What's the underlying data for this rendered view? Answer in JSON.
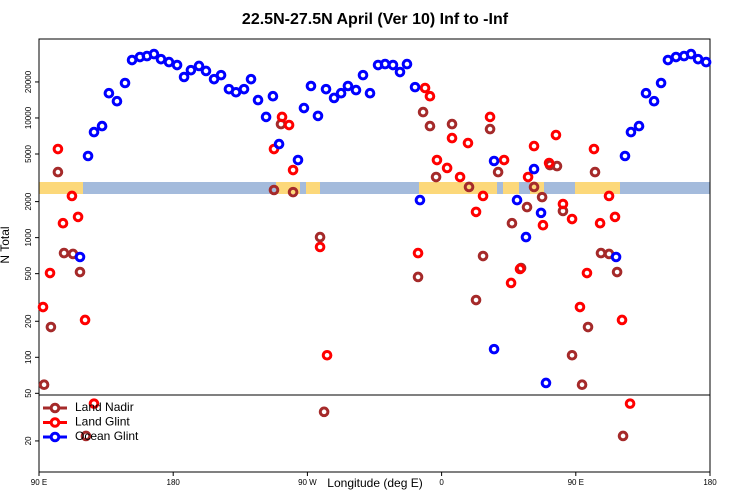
{
  "chart_data": {
    "type": "scatter",
    "title": "22.5N-27.5N April (Ver 10)   Inf to -Inf",
    "x_label": "Longitude (deg E)",
    "y_label": "N Total",
    "xlim": [
      90,
      540
    ],
    "xticks": [
      {
        "value": 90,
        "label": "90 E"
      },
      180,
      {
        "value": 270,
        "label": "90 W"
      },
      {
        "value": 360,
        "label": "0"
      },
      {
        "value": 450,
        "label": "90 E"
      },
      {
        "value": 540,
        "label": "180"
      }
    ],
    "ylim": [
      11,
      45700
    ],
    "log_y": true,
    "yticks": [
      20,
      50,
      100,
      200,
      500,
      1000,
      2000,
      5000,
      10000,
      20000
    ],
    "legend": "bottom-left",
    "series": [
      {
        "name": "Land Nadir",
        "color": "#a52a2a",
        "x": [
          93.4,
          98.0,
          102.7,
          106.8,
          112.8,
          117.5,
          121.5,
          247.6,
          252.3,
          260.4,
          278.5,
          281.2,
          344.2,
          347.6,
          352.2,
          356.3,
          367.0,
          378.4,
          383.1,
          387.8,
          392.5,
          397.9,
          407.2,
          413.3,
          417.3,
          422.0,
          427.4,
          432.7,
          437.4,
          441.4,
          447.5,
          454.2,
          458.2,
          462.9,
          466.9,
          472.3,
          477.7,
          481.7
        ],
        "values": [
          59,
          179,
          3530,
          743,
          730,
          516,
          22,
          2500,
          8890,
          2400,
          1010,
          35,
          469,
          11200,
          8550,
          3210,
          8890,
          2650,
          301,
          702,
          8070,
          3530,
          1320,
          557,
          1800,
          2650,
          2180,
          4040,
          3960,
          1670,
          104,
          59,
          179,
          3530,
          743,
          730,
          516,
          22
        ]
      },
      {
        "name": "Land Glint",
        "color": "#ff0000",
        "x": [
          92.7,
          97.4,
          102.7,
          106.1,
          112.1,
          116.2,
          120.9,
          126.9,
          247.6,
          253.0,
          257.7,
          260.4,
          278.5,
          283.2,
          344.2,
          348.9,
          352.2,
          356.9,
          363.7,
          367.0,
          372.4,
          377.7,
          383.1,
          387.8,
          392.5,
          401.9,
          406.6,
          412.6,
          418.0,
          422.0,
          428.0,
          432.1,
          436.7,
          441.4,
          447.5,
          452.8,
          457.5,
          462.2,
          466.3,
          472.3,
          476.3,
          481.0,
          486.4
        ],
        "values": [
          263,
          506,
          5500,
          1320,
          2230,
          1490,
          205,
          41,
          5500,
          10200,
          8730,
          3670,
          835,
          104,
          743,
          17800,
          15200,
          4450,
          3820,
          6790,
          3210,
          6170,
          1640,
          2230,
          10200,
          4450,
          418,
          547,
          3210,
          5820,
          1270,
          4200,
          7200,
          1910,
          1430,
          263,
          506,
          5500,
          1320,
          2230,
          1490,
          205,
          41
        ]
      },
      {
        "name": "Ocean Glint",
        "color": "#0000ff",
        "x": [
          117.5,
          122.9,
          126.9,
          132.3,
          136.9,
          142.3,
          147.7,
          152.4,
          157.7,
          162.4,
          167.1,
          171.8,
          177.2,
          182.6,
          187.3,
          191.9,
          197.3,
          202.0,
          207.4,
          212.1,
          217.4,
          222.1,
          227.5,
          232.2,
          236.9,
          242.3,
          246.9,
          251.0,
          263.7,
          267.7,
          272.4,
          277.1,
          282.5,
          287.9,
          292.6,
          297.2,
          302.6,
          307.3,
          312.0,
          317.4,
          322.1,
          327.4,
          332.1,
          336.8,
          342.2,
          345.5,
          395.2,
          395.2,
          410.6,
          416.6,
          422.0,
          426.7,
          430.0,
          477.0,
          483.0,
          487.0,
          492.4,
          497.1,
          502.5,
          507.2,
          511.8,
          517.2,
          522.6,
          527.3,
          532.0,
          537.4
        ],
        "values": [
          689,
          4810,
          7620,
          8550,
          16100,
          13800,
          19600,
          30500,
          32300,
          32900,
          34200,
          31000,
          29300,
          27700,
          22000,
          25100,
          27200,
          24700,
          21100,
          22800,
          17400,
          16400,
          17400,
          21100,
          14100,
          10200,
          15200,
          6050,
          4450,
          12100,
          18500,
          10400,
          17400,
          14700,
          16100,
          18500,
          17100,
          22800,
          16100,
          27700,
          28200,
          27700,
          24200,
          28200,
          18100,
          2060,
          4370,
          117,
          2060,
          1010,
          3740,
          1610,
          61,
          689,
          4810,
          7620,
          8550,
          16100,
          13800,
          19600,
          30500,
          32300,
          32900,
          34200,
          31000,
          29300
        ]
      }
    ]
  }
}
